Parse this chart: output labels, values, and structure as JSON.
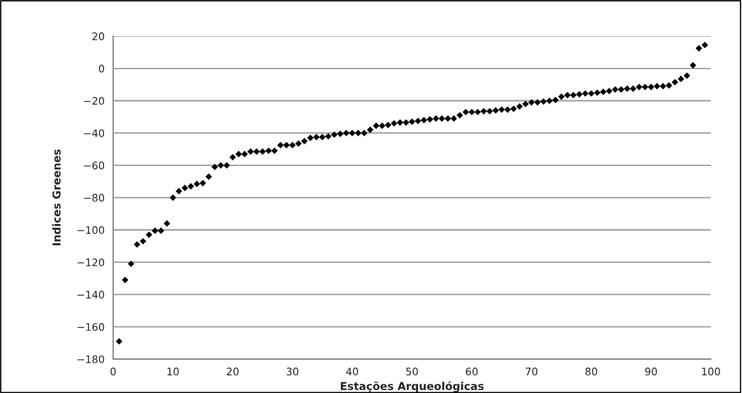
{
  "chart_data": {
    "type": "scatter",
    "xlabel": "Estações Arqueológicas",
    "ylabel": "Indices Greenes",
    "x": [
      1,
      2,
      3,
      4,
      5,
      6,
      7,
      8,
      9,
      10,
      11,
      12,
      13,
      14,
      15,
      16,
      17,
      18,
      19,
      20,
      21,
      22,
      23,
      24,
      25,
      26,
      27,
      28,
      29,
      30,
      31,
      32,
      33,
      34,
      35,
      36,
      37,
      38,
      39,
      40,
      41,
      42,
      43,
      44,
      45,
      46,
      47,
      48,
      49,
      50,
      51,
      52,
      53,
      54,
      55,
      56,
      57,
      58,
      59,
      60,
      61,
      62,
      63,
      64,
      65,
      66,
      67,
      68,
      69,
      70,
      71,
      72,
      73,
      74,
      75,
      76,
      77,
      78,
      79,
      80,
      81,
      82,
      83,
      84,
      85,
      86,
      87,
      88,
      89,
      90,
      91,
      92,
      93,
      94,
      95,
      96,
      97,
      98,
      99
    ],
    "series": [
      {
        "color": "#000000",
        "values": [
          -169,
          -131,
          -121,
          -109,
          -107,
          -103,
          -100.5,
          -100.5,
          -96,
          -80,
          -76,
          -74,
          -73,
          -71.5,
          -71,
          -67,
          -61,
          -60,
          -60,
          -55,
          -53,
          -53,
          -51.5,
          -51.5,
          -51.5,
          -51,
          -51,
          -47.5,
          -47.5,
          -47.5,
          -46.5,
          -45,
          -43,
          -42.5,
          -42.5,
          -42,
          -41,
          -40.5,
          -40,
          -40,
          -40,
          -40,
          -38,
          -35.5,
          -35.5,
          -35,
          -34,
          -33.5,
          -33.5,
          -33,
          -32.5,
          -32,
          -31.5,
          -31,
          -31,
          -31,
          -31,
          -29,
          -27,
          -27,
          -27,
          -26.5,
          -26.5,
          -26,
          -25.5,
          -25.5,
          -25,
          -23.5,
          -22,
          -21,
          -21,
          -20.5,
          -20,
          -19.5,
          -17.5,
          -16.5,
          -16.5,
          -16,
          -15.5,
          -15.5,
          -15,
          -14.5,
          -14,
          -13,
          -13,
          -12.5,
          -12.5,
          -11.5,
          -11.5,
          -11.5,
          -11,
          -11,
          -10.5,
          -8.5,
          -6.5,
          -4.5,
          2,
          12.5,
          14.5
        ]
      }
    ],
    "xlim": [
      0,
      100
    ],
    "xticks": [
      0,
      10,
      20,
      30,
      40,
      50,
      60,
      70,
      80,
      90,
      100
    ],
    "ylim": [
      -180,
      20
    ],
    "yticks": [
      -180,
      -160,
      -140,
      -120,
      -100,
      -80,
      -60,
      -40,
      -20,
      0,
      20
    ],
    "grid": "y",
    "marker": "diamond",
    "legend": false
  }
}
